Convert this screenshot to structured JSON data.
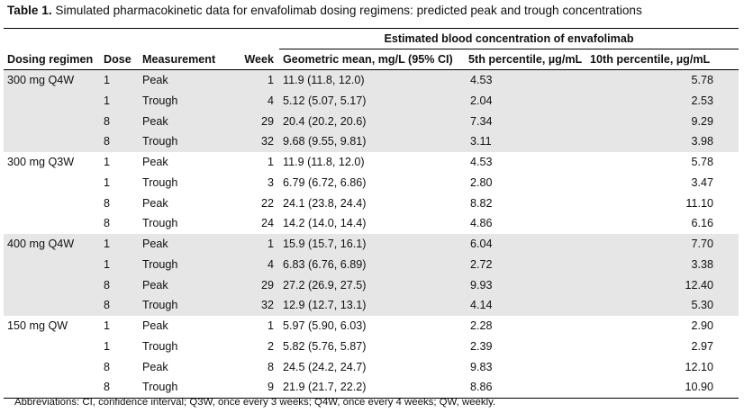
{
  "caption": {
    "label": "Table 1.",
    "text": " Simulated pharmacokinetic data for envafolimab dosing regimens: predicted peak and trough concentrations"
  },
  "header": {
    "group": "Estimated blood concentration of envafolimab",
    "columns": [
      "Dosing regimen",
      "Dose",
      "Measurement",
      "Week",
      "Geometric mean, mg/L (95% CI)",
      "5th percentile, µg/mL",
      "10th percentile, µg/mL"
    ]
  },
  "groups": [
    {
      "regimen": "300 mg Q4W",
      "rows": [
        {
          "dose": "1",
          "measurement": "Peak",
          "week": "1",
          "geomean": "11.9 (11.8, 12.0)",
          "p5": "4.53",
          "p10": "5.78"
        },
        {
          "dose": "1",
          "measurement": "Trough",
          "week": "4",
          "geomean": "5.12 (5.07, 5.17)",
          "p5": "2.04",
          "p10": "2.53"
        },
        {
          "dose": "8",
          "measurement": "Peak",
          "week": "29",
          "geomean": "20.4 (20.2, 20.6)",
          "p5": "7.34",
          "p10": "9.29"
        },
        {
          "dose": "8",
          "measurement": "Trough",
          "week": "32",
          "geomean": "9.68 (9.55, 9.81)",
          "p5": "3.11",
          "p10": "3.98"
        }
      ]
    },
    {
      "regimen": "300 mg Q3W",
      "rows": [
        {
          "dose": "1",
          "measurement": "Peak",
          "week": "1",
          "geomean": "11.9 (11.8, 12.0)",
          "p5": "4.53",
          "p10": "5.78"
        },
        {
          "dose": "1",
          "measurement": "Trough",
          "week": "3",
          "geomean": "6.79 (6.72, 6.86)",
          "p5": "2.80",
          "p10": "3.47"
        },
        {
          "dose": "8",
          "measurement": "Peak",
          "week": "22",
          "geomean": "24.1 (23.8, 24.4)",
          "p5": "8.82",
          "p10": "11.10"
        },
        {
          "dose": "8",
          "measurement": "Trough",
          "week": "24",
          "geomean": "14.2 (14.0, 14.4)",
          "p5": "4.86",
          "p10": "6.16"
        }
      ]
    },
    {
      "regimen": "400 mg Q4W",
      "rows": [
        {
          "dose": "1",
          "measurement": "Peak",
          "week": "1",
          "geomean": "15.9 (15.7, 16.1)",
          "p5": "6.04",
          "p10": "7.70"
        },
        {
          "dose": "1",
          "measurement": "Trough",
          "week": "4",
          "geomean": "6.83 (6.76, 6.89)",
          "p5": "2.72",
          "p10": "3.38"
        },
        {
          "dose": "8",
          "measurement": "Peak",
          "week": "29",
          "geomean": "27.2 (26.9, 27.5)",
          "p5": "9.93",
          "p10": "12.40"
        },
        {
          "dose": "8",
          "measurement": "Trough",
          "week": "32",
          "geomean": "12.9 (12.7, 13.1)",
          "p5": "4.14",
          "p10": "5.30"
        }
      ]
    },
    {
      "regimen": "150 mg QW",
      "rows": [
        {
          "dose": "1",
          "measurement": "Peak",
          "week": "1",
          "geomean": "5.97 (5.90, 6.03)",
          "p5": "2.28",
          "p10": "2.90"
        },
        {
          "dose": "1",
          "measurement": "Trough",
          "week": "2",
          "geomean": "5.82 (5.76, 5.87)",
          "p5": "2.39",
          "p10": "2.97"
        },
        {
          "dose": "8",
          "measurement": "Peak",
          "week": "8",
          "geomean": "24.5 (24.2, 24.7)",
          "p5": "9.83",
          "p10": "12.10"
        },
        {
          "dose": "8",
          "measurement": "Trough",
          "week": "9",
          "geomean": "21.9 (21.7, 22.2)",
          "p5": "8.86",
          "p10": "10.90"
        }
      ]
    }
  ],
  "footnote": "Abbreviations: CI, confidence interval; Q3W, once every 3 weeks; Q4W, once every 4 weeks; QW, weekly.",
  "colors": {
    "shade": "#e6e6e6",
    "rule": "#000000"
  }
}
